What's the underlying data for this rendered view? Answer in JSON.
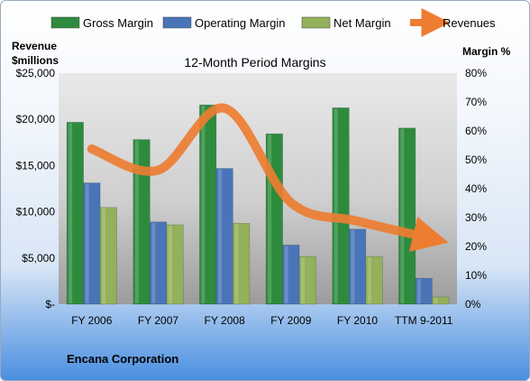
{
  "chart_data": {
    "type": "bar",
    "title": "12-Month Period Margins",
    "categories": [
      "FY 2006",
      "FY 2007",
      "FY 2008",
      "FY 2009",
      "FY 2010",
      "TTM 9-2011"
    ],
    "left_axis": {
      "label_line1": "Revenue",
      "label_line2": "$millions",
      "ylim": [
        0,
        25000
      ],
      "ticks": [
        "$-",
        "$5,000",
        "$10,000",
        "$15,000",
        "$20,000",
        "$25,000"
      ]
    },
    "right_axis": {
      "label": "Margin %",
      "ylim": [
        0,
        80
      ],
      "ticks": [
        "0%",
        "10%",
        "20%",
        "30%",
        "40%",
        "50%",
        "60%",
        "70%",
        "80%"
      ]
    },
    "series": [
      {
        "name": "Gross Margin",
        "kind": "bar",
        "axis": "right",
        "color": "#2e8b3e",
        "values": [
          63,
          57,
          69,
          59,
          68,
          61
        ]
      },
      {
        "name": "Operating Margin",
        "kind": "bar",
        "axis": "right",
        "color": "#4a74b8",
        "values": [
          42,
          28.5,
          47,
          20.5,
          26,
          9
        ]
      },
      {
        "name": "Net Margin",
        "kind": "bar",
        "axis": "right",
        "color": "#93b05a",
        "values": [
          33.5,
          27.5,
          28,
          16.5,
          16.5,
          2.5
        ]
      },
      {
        "name": "Revenues",
        "kind": "line",
        "axis": "left",
        "color": "#ed7d31",
        "values": [
          16800,
          14500,
          21200,
          11000,
          9000,
          7300
        ]
      }
    ],
    "legend_position": "top",
    "grid": false
  },
  "footer": {
    "company": "Encana Corporation"
  }
}
